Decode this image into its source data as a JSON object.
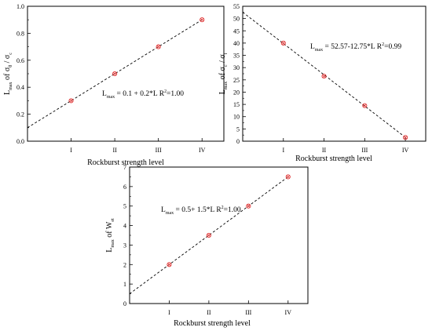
{
  "chart_data": [
    {
      "type": "scatter",
      "xlabel": "Rockburst strength level",
      "ylabel": {
        "main": "L",
        "sub": "max",
        "rest": " of σ",
        "sub2": "θ",
        "rest2": " / σ",
        "sub3": "c"
      },
      "x_categories": [
        "I",
        "II",
        "III",
        "IV"
      ],
      "x": [
        1,
        2,
        3,
        4
      ],
      "y": [
        0.3,
        0.5,
        0.7,
        0.9
      ],
      "xlim": [
        0,
        4.5
      ],
      "ylim": [
        0,
        1.0
      ],
      "yticks": [
        "0.0",
        "0.2",
        "0.4",
        "0.6",
        "0.8",
        "1.0"
      ],
      "ytick_values": [
        0,
        0.2,
        0.4,
        0.6,
        0.8,
        1.0
      ],
      "fit": {
        "intercept": 0.1,
        "slope": 0.2,
        "style": "dashed"
      },
      "equation": {
        "pre": "L",
        "sub": "max",
        "post": " = 0.1 + 0.2*L   R",
        "sup": "2",
        "tail": "=1.00"
      },
      "marker_color": "#e03030",
      "line_color": "#000000"
    },
    {
      "type": "scatter",
      "xlabel": "Rockburst strength level",
      "ylabel": {
        "main": "L",
        "sub": "max",
        "rest": " of σ",
        "sub2": "c",
        "rest2": " / σ",
        "sub3": "t"
      },
      "x_categories": [
        "I",
        "II",
        "III",
        "IV"
      ],
      "x": [
        1,
        2,
        3,
        4
      ],
      "y": [
        40,
        26.5,
        14.5,
        1.5
      ],
      "xlim": [
        0,
        4.5
      ],
      "ylim": [
        0,
        55
      ],
      "yticks": [
        "0",
        "5",
        "10",
        "15",
        "20",
        "25",
        "30",
        "35",
        "40",
        "45",
        "50",
        "55"
      ],
      "ytick_values": [
        0,
        5,
        10,
        15,
        20,
        25,
        30,
        35,
        40,
        45,
        50,
        55
      ],
      "fit": {
        "intercept": 52.57,
        "slope": -12.75,
        "style": "dashed"
      },
      "equation": {
        "pre": "L",
        "sub": "max",
        "post": " = 52.57-12.75*L   R",
        "sup": "2",
        "tail": "=0.99"
      },
      "marker_color": "#e03030",
      "line_color": "#000000"
    },
    {
      "type": "scatter",
      "xlabel": "Rockburst strength level",
      "ylabel": {
        "main": "L",
        "sub": "max",
        "rest": " of W",
        "sub2": "et",
        "rest2": "",
        "sub3": ""
      },
      "x_categories": [
        "I",
        "II",
        "III",
        "IV"
      ],
      "x": [
        1,
        2,
        3,
        4
      ],
      "y": [
        2,
        3.5,
        5,
        6.5
      ],
      "xlim": [
        0,
        4.5
      ],
      "ylim": [
        0,
        7
      ],
      "yticks": [
        "0",
        "1",
        "2",
        "3",
        "4",
        "5",
        "6",
        "7"
      ],
      "ytick_values": [
        0,
        1,
        2,
        3,
        4,
        5,
        6,
        7
      ],
      "fit": {
        "intercept": 0.5,
        "slope": 1.5,
        "style": "dashed"
      },
      "equation": {
        "pre": "L",
        "sub": "max",
        "post": " = 0.5+ 1.5*L   R",
        "sup": "2",
        "tail": "=1.00"
      },
      "marker_color": "#e03030",
      "line_color": "#000000"
    }
  ]
}
